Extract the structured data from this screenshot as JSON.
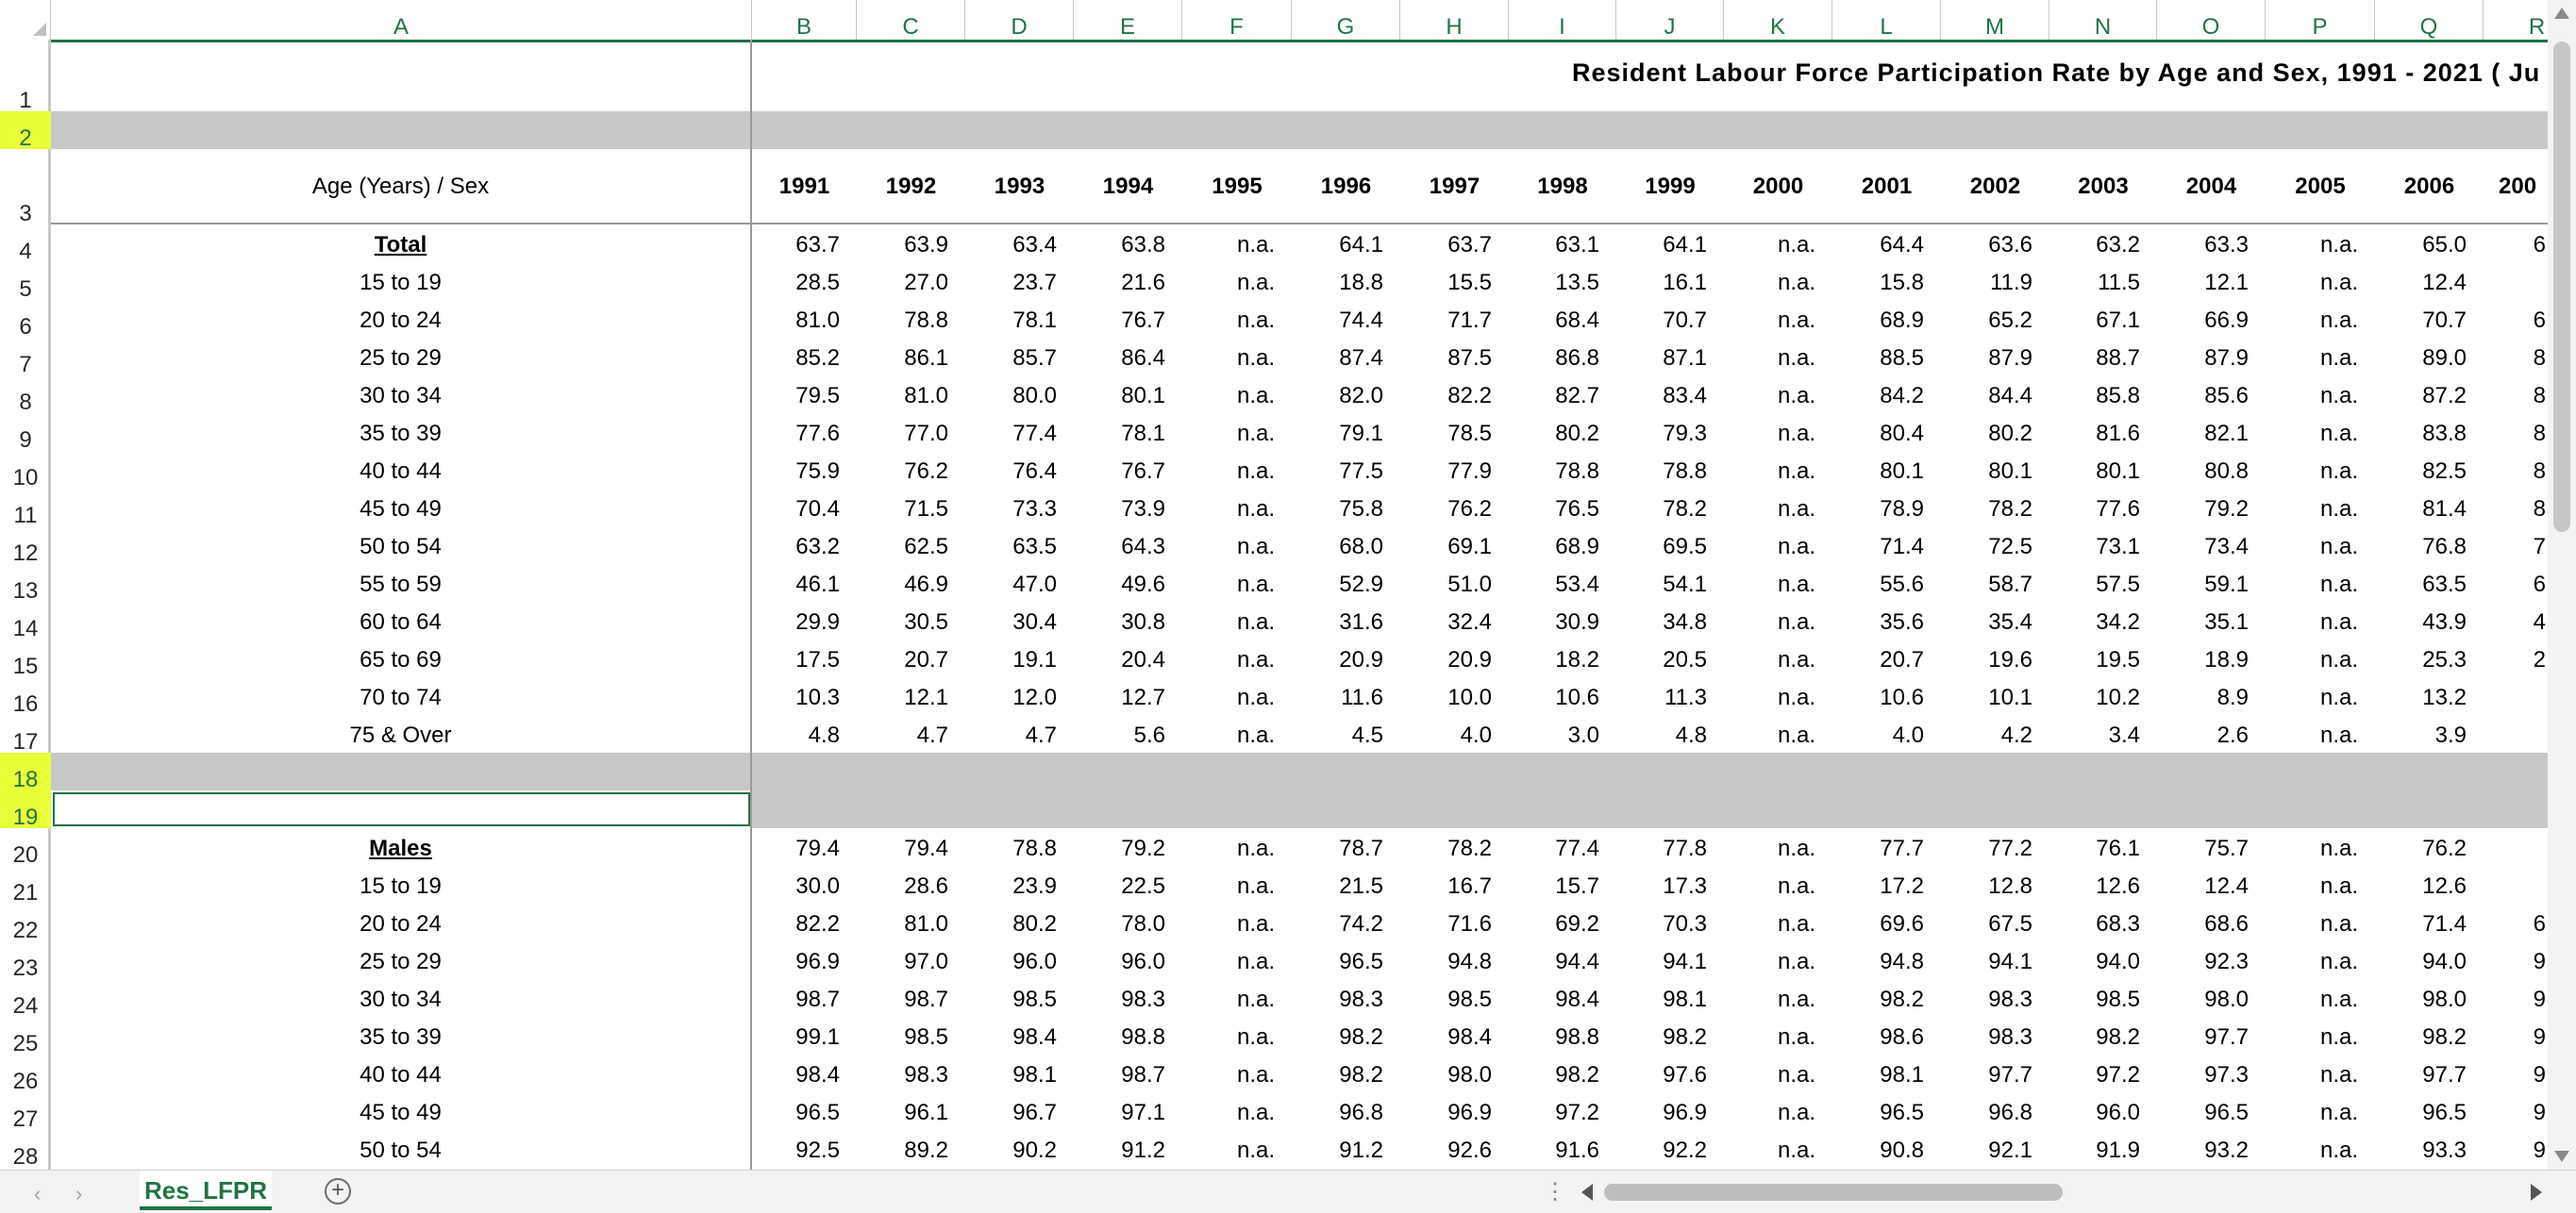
{
  "sheet": {
    "title": "Resident  Labour  Force  Participation  Rate  by  Age  and  Sex, 1991 - 2021  ( Ju",
    "header_label": "Age (Years) / Sex",
    "columns": [
      "A",
      "B",
      "C",
      "D",
      "E",
      "F",
      "G",
      "H",
      "I",
      "J",
      "K",
      "L",
      "M",
      "N",
      "O",
      "P",
      "Q",
      "R"
    ],
    "years": [
      "1991",
      "1992",
      "1993",
      "1994",
      "1995",
      "1996",
      "1997",
      "1998",
      "1999",
      "2000",
      "2001",
      "2002",
      "2003",
      "2004",
      "2005",
      "2006",
      "200"
    ],
    "row_numbers": [
      "1",
      "2",
      "3",
      "4",
      "5",
      "6",
      "7",
      "8",
      "9",
      "10",
      "11",
      "12",
      "13",
      "14",
      "15",
      "16",
      "17",
      "18",
      "19",
      "20",
      "21",
      "22",
      "23",
      "24",
      "25",
      "26",
      "27",
      "28"
    ],
    "sections": [
      {
        "label": "Total",
        "rows": [
          {
            "age": "Total",
            "values": [
              "63.7",
              "63.9",
              "63.4",
              "63.8",
              "n.a.",
              "64.1",
              "63.7",
              "63.1",
              "64.1",
              "n.a.",
              "64.4",
              "63.6",
              "63.2",
              "63.3",
              "n.a.",
              "65.0"
            ],
            "partial": "6"
          },
          {
            "age": "15 to 19",
            "values": [
              "28.5",
              "27.0",
              "23.7",
              "21.6",
              "n.a.",
              "18.8",
              "15.5",
              "13.5",
              "16.1",
              "n.a.",
              "15.8",
              "11.9",
              "11.5",
              "12.1",
              "n.a.",
              "12.4"
            ],
            "partial": ""
          },
          {
            "age": "20 to 24",
            "values": [
              "81.0",
              "78.8",
              "78.1",
              "76.7",
              "n.a.",
              "74.4",
              "71.7",
              "68.4",
              "70.7",
              "n.a.",
              "68.9",
              "65.2",
              "67.1",
              "66.9",
              "n.a.",
              "70.7"
            ],
            "partial": "6"
          },
          {
            "age": "25 to 29",
            "values": [
              "85.2",
              "86.1",
              "85.7",
              "86.4",
              "n.a.",
              "87.4",
              "87.5",
              "86.8",
              "87.1",
              "n.a.",
              "88.5",
              "87.9",
              "88.7",
              "87.9",
              "n.a.",
              "89.0"
            ],
            "partial": "8"
          },
          {
            "age": "30 to 34",
            "values": [
              "79.5",
              "81.0",
              "80.0",
              "80.1",
              "n.a.",
              "82.0",
              "82.2",
              "82.7",
              "83.4",
              "n.a.",
              "84.2",
              "84.4",
              "85.8",
              "85.6",
              "n.a.",
              "87.2"
            ],
            "partial": "8"
          },
          {
            "age": "35 to 39",
            "values": [
              "77.6",
              "77.0",
              "77.4",
              "78.1",
              "n.a.",
              "79.1",
              "78.5",
              "80.2",
              "79.3",
              "n.a.",
              "80.4",
              "80.2",
              "81.6",
              "82.1",
              "n.a.",
              "83.8"
            ],
            "partial": "8"
          },
          {
            "age": "40 to 44",
            "values": [
              "75.9",
              "76.2",
              "76.4",
              "76.7",
              "n.a.",
              "77.5",
              "77.9",
              "78.8",
              "78.8",
              "n.a.",
              "80.1",
              "80.1",
              "80.1",
              "80.8",
              "n.a.",
              "82.5"
            ],
            "partial": "8"
          },
          {
            "age": "45 to 49",
            "values": [
              "70.4",
              "71.5",
              "73.3",
              "73.9",
              "n.a.",
              "75.8",
              "76.2",
              "76.5",
              "78.2",
              "n.a.",
              "78.9",
              "78.2",
              "77.6",
              "79.2",
              "n.a.",
              "81.4"
            ],
            "partial": "8"
          },
          {
            "age": "50 to 54",
            "values": [
              "63.2",
              "62.5",
              "63.5",
              "64.3",
              "n.a.",
              "68.0",
              "69.1",
              "68.9",
              "69.5",
              "n.a.",
              "71.4",
              "72.5",
              "73.1",
              "73.4",
              "n.a.",
              "76.8"
            ],
            "partial": "7"
          },
          {
            "age": "55 to 59",
            "values": [
              "46.1",
              "46.9",
              "47.0",
              "49.6",
              "n.a.",
              "52.9",
              "51.0",
              "53.4",
              "54.1",
              "n.a.",
              "55.6",
              "58.7",
              "57.5",
              "59.1",
              "n.a.",
              "63.5"
            ],
            "partial": "6"
          },
          {
            "age": "60 to 64",
            "values": [
              "29.9",
              "30.5",
              "30.4",
              "30.8",
              "n.a.",
              "31.6",
              "32.4",
              "30.9",
              "34.8",
              "n.a.",
              "35.6",
              "35.4",
              "34.2",
              "35.1",
              "n.a.",
              "43.9"
            ],
            "partial": "4"
          },
          {
            "age": "65 to 69",
            "values": [
              "17.5",
              "20.7",
              "19.1",
              "20.4",
              "n.a.",
              "20.9",
              "20.9",
              "18.2",
              "20.5",
              "n.a.",
              "20.7",
              "19.6",
              "19.5",
              "18.9",
              "n.a.",
              "25.3"
            ],
            "partial": "2"
          },
          {
            "age": "70 to 74",
            "values": [
              "10.3",
              "12.1",
              "12.0",
              "12.7",
              "n.a.",
              "11.6",
              "10.0",
              "10.6",
              "11.3",
              "n.a.",
              "10.6",
              "10.1",
              "10.2",
              "8.9",
              "n.a.",
              "13.2"
            ],
            "partial": ""
          },
          {
            "age": "75 & Over",
            "values": [
              "4.8",
              "4.7",
              "4.7",
              "5.6",
              "n.a.",
              "4.5",
              "4.0",
              "3.0",
              "4.8",
              "n.a.",
              "4.0",
              "4.2",
              "3.4",
              "2.6",
              "n.a.",
              "3.9"
            ],
            "partial": ""
          }
        ]
      },
      {
        "label": "Males",
        "rows": [
          {
            "age": "Males",
            "values": [
              "79.4",
              "79.4",
              "78.8",
              "79.2",
              "n.a.",
              "78.7",
              "78.2",
              "77.4",
              "77.8",
              "n.a.",
              "77.7",
              "77.2",
              "76.1",
              "75.7",
              "n.a.",
              "76.2"
            ],
            "partial": ""
          },
          {
            "age": "15 to 19",
            "values": [
              "30.0",
              "28.6",
              "23.9",
              "22.5",
              "n.a.",
              "21.5",
              "16.7",
              "15.7",
              "17.3",
              "n.a.",
              "17.2",
              "12.8",
              "12.6",
              "12.4",
              "n.a.",
              "12.6"
            ],
            "partial": ""
          },
          {
            "age": "20 to 24",
            "values": [
              "82.2",
              "81.0",
              "80.2",
              "78.0",
              "n.a.",
              "74.2",
              "71.6",
              "69.2",
              "70.3",
              "n.a.",
              "69.6",
              "67.5",
              "68.3",
              "68.6",
              "n.a.",
              "71.4"
            ],
            "partial": "6"
          },
          {
            "age": "25 to 29",
            "values": [
              "96.9",
              "97.0",
              "96.0",
              "96.0",
              "n.a.",
              "96.5",
              "94.8",
              "94.4",
              "94.1",
              "n.a.",
              "94.8",
              "94.1",
              "94.0",
              "92.3",
              "n.a.",
              "94.0"
            ],
            "partial": "9"
          },
          {
            "age": "30 to 34",
            "values": [
              "98.7",
              "98.7",
              "98.5",
              "98.3",
              "n.a.",
              "98.3",
              "98.5",
              "98.4",
              "98.1",
              "n.a.",
              "98.2",
              "98.3",
              "98.5",
              "98.0",
              "n.a.",
              "98.0"
            ],
            "partial": "9"
          },
          {
            "age": "35 to 39",
            "values": [
              "99.1",
              "98.5",
              "98.4",
              "98.8",
              "n.a.",
              "98.2",
              "98.4",
              "98.8",
              "98.2",
              "n.a.",
              "98.6",
              "98.3",
              "98.2",
              "97.7",
              "n.a.",
              "98.2"
            ],
            "partial": "9"
          },
          {
            "age": "40 to 44",
            "values": [
              "98.4",
              "98.3",
              "98.1",
              "98.7",
              "n.a.",
              "98.2",
              "98.0",
              "98.2",
              "97.6",
              "n.a.",
              "98.1",
              "97.7",
              "97.2",
              "97.3",
              "n.a.",
              "97.7"
            ],
            "partial": "9"
          },
          {
            "age": "45 to 49",
            "values": [
              "96.5",
              "96.1",
              "96.7",
              "97.1",
              "n.a.",
              "96.8",
              "96.9",
              "97.2",
              "96.9",
              "n.a.",
              "96.5",
              "96.8",
              "96.0",
              "96.5",
              "n.a.",
              "96.5"
            ],
            "partial": "9"
          },
          {
            "age": "50 to 54",
            "values": [
              "92.5",
              "89.2",
              "90.2",
              "91.2",
              "n.a.",
              "91.2",
              "92.6",
              "91.6",
              "92.2",
              "n.a.",
              "90.8",
              "92.1",
              "91.9",
              "93.2",
              "n.a.",
              "93.3"
            ],
            "partial": "9"
          }
        ]
      }
    ]
  },
  "tabs": {
    "active": "Res_LFPR",
    "add_label": "+",
    "dots": "⋮"
  },
  "colors": {
    "accent": "#217346",
    "selected_row_header": "#e8ff3a",
    "band_gray": "#c8c8c8"
  }
}
